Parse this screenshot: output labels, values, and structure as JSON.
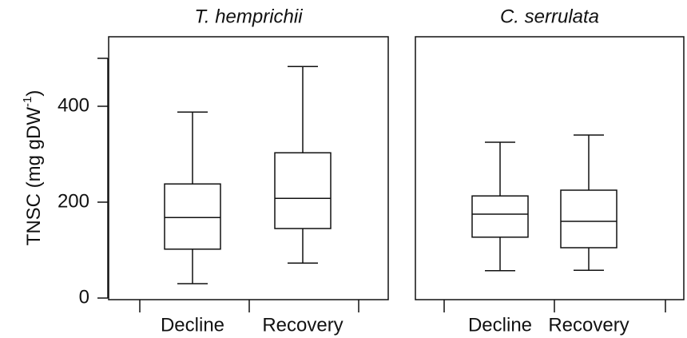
{
  "chart_data": [
    {
      "type": "box",
      "title": "T. hemprichii",
      "y_label": {
        "text": "TNSC (mg gDW",
        "superscript": "-1",
        "suffix": ")"
      },
      "categories": [
        "Decline",
        "Recovery"
      ],
      "boxes": {
        "low": [
          30,
          73
        ],
        "q1": [
          102,
          145
        ],
        "median": [
          168,
          208
        ],
        "q3": [
          238,
          303
        ],
        "high": [
          388,
          483
        ]
      },
      "ylim": [
        0,
        545
      ],
      "yticks": [
        0,
        200,
        400
      ]
    },
    {
      "type": "box",
      "title": "C. serrulata",
      "categories": [
        "Decline",
        "Recovery"
      ],
      "boxes": {
        "low": [
          57,
          58
        ],
        "q1": [
          127,
          105
        ],
        "median": [
          175,
          160
        ],
        "q3": [
          213,
          225
        ],
        "high": [
          325,
          340
        ]
      },
      "ylim": [
        0,
        545
      ]
    }
  ]
}
